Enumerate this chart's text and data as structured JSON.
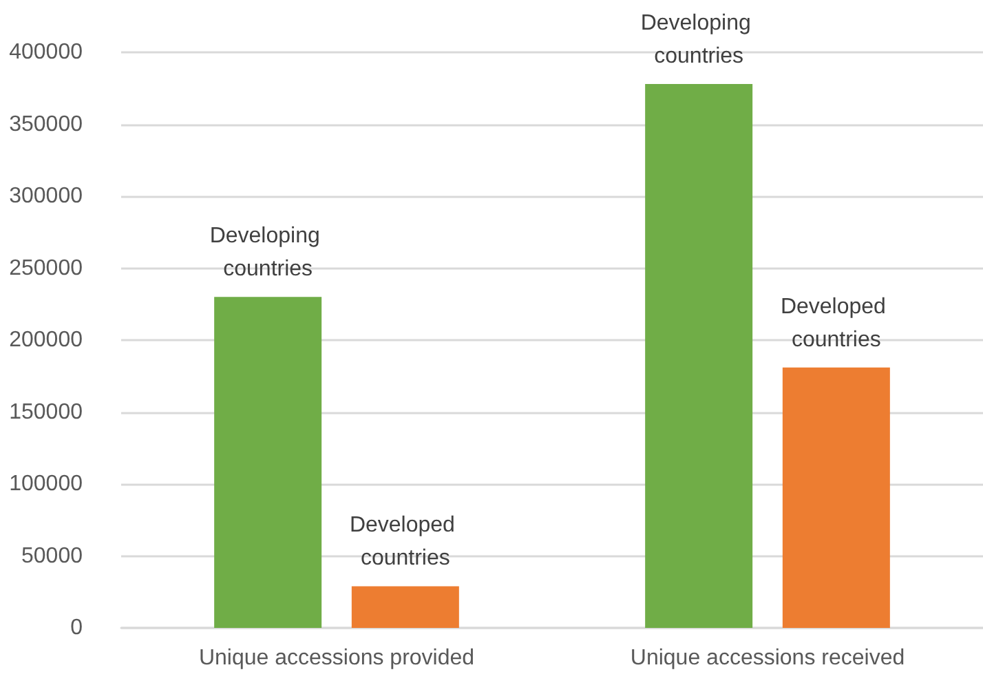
{
  "chart_data": {
    "type": "bar",
    "categories": [
      "Unique accessions provided",
      "Unique accessions received"
    ],
    "series": [
      {
        "name": "Developing countries",
        "color": "#70ad47",
        "values": [
          230000,
          378000
        ]
      },
      {
        "name": "Developed countries",
        "color": "#ed7d31",
        "values": [
          29000,
          181000
        ]
      }
    ],
    "ylim": [
      0,
      400000
    ],
    "yticks": [
      0,
      50000,
      100000,
      150000,
      200000,
      250000,
      300000,
      350000,
      400000
    ],
    "grid": "y",
    "legend": false
  }
}
